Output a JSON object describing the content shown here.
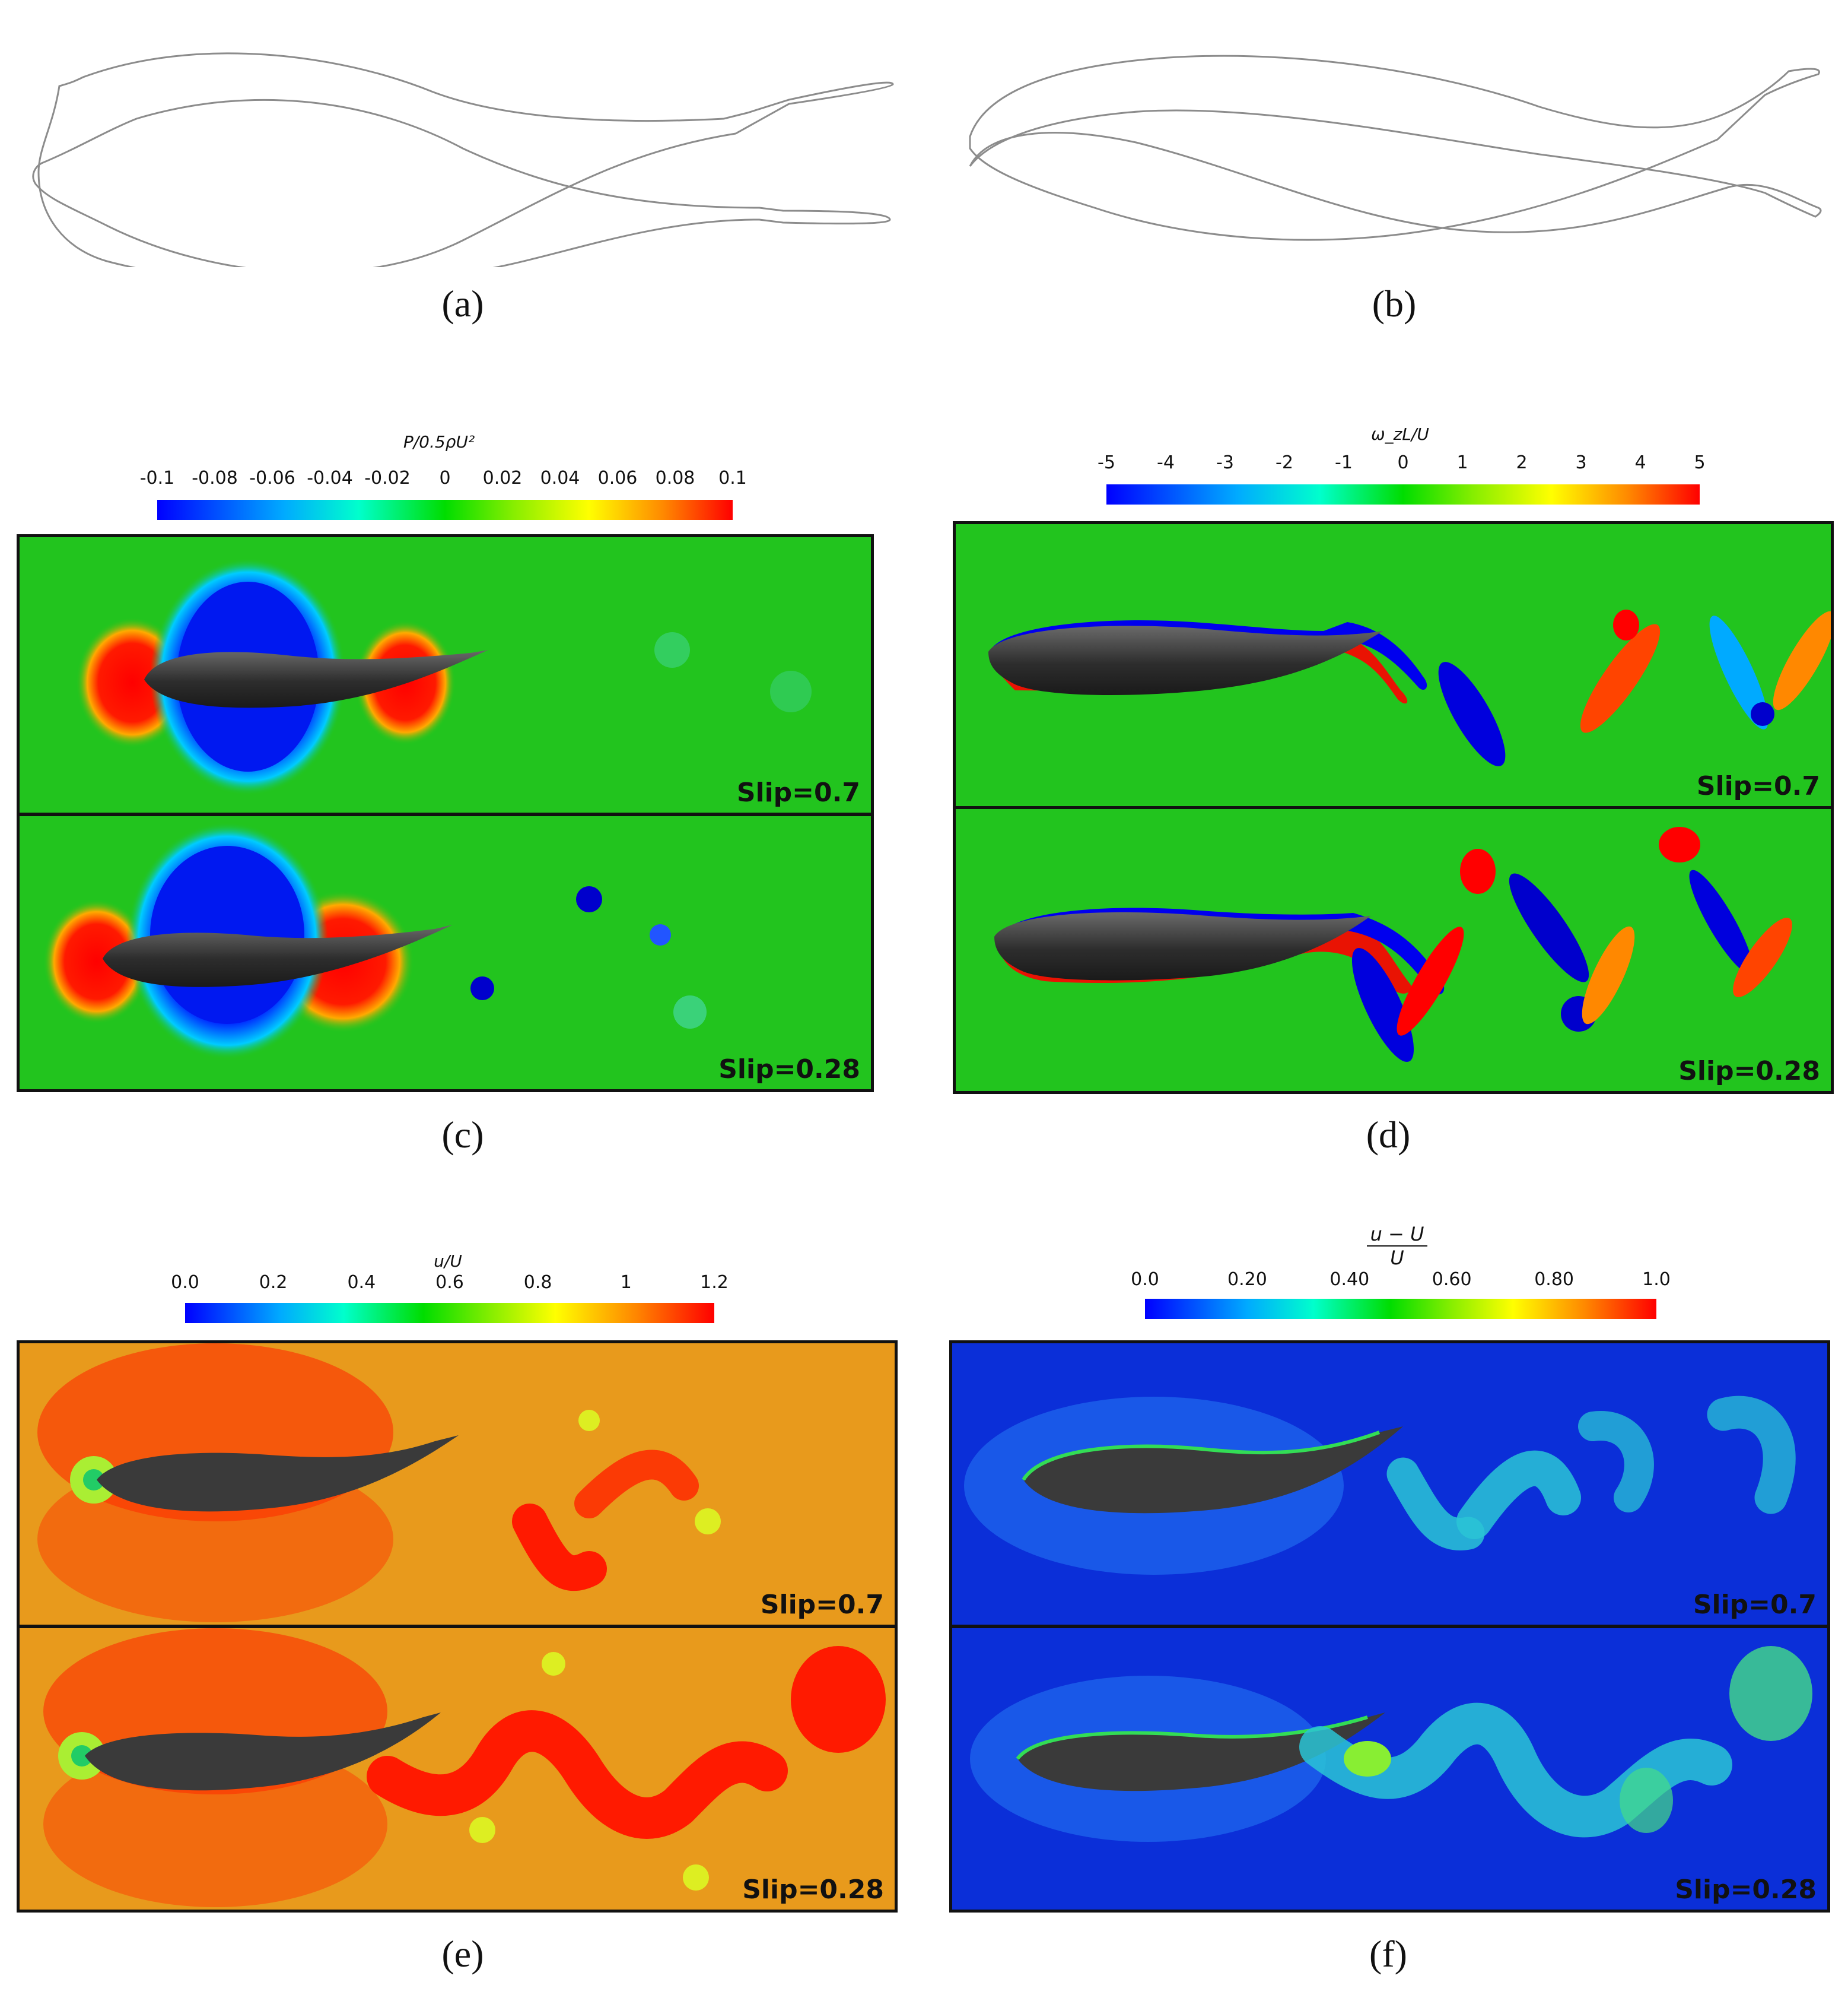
{
  "captions": {
    "a": "(a)",
    "b": "(b)",
    "c": "(c)",
    "d": "(d)",
    "e": "(e)",
    "f": "(f)"
  },
  "pressure": {
    "title": "P/0.5ρU²",
    "ticks": [
      "-0.1",
      "-0.08",
      "-0.06",
      "-0.04",
      "-0.02",
      "0",
      "0.02",
      "0.04",
      "0.06",
      "0.08",
      "0.1"
    ],
    "slip_top": "Slip=0.7",
    "slip_bottom": "Slip=0.28"
  },
  "vorticity": {
    "title": "ω_zL/U",
    "ticks": [
      "-5",
      "-4",
      "-3",
      "-2",
      "-1",
      "0",
      "1",
      "2",
      "3",
      "4",
      "5"
    ],
    "slip_top": "Slip=0.7",
    "slip_bottom": "Slip=0.28"
  },
  "velocity": {
    "title": "u/U",
    "ticks": [
      "0.0",
      "0.2",
      "0.4",
      "0.6",
      "0.8",
      "1",
      "1.2"
    ],
    "slip_top": "Slip=0.7",
    "slip_bottom": "Slip=0.28"
  },
  "deficit": {
    "title_num": "u − U",
    "title_den": "U",
    "ticks": [
      "0.0",
      "0.20",
      "0.40",
      "0.60",
      "0.80",
      "1.0"
    ],
    "slip_top": "Slip=0.7",
    "slip_bottom": "Slip=0.28"
  },
  "colors": {
    "jet": [
      "#0000ff",
      "#00ffff",
      "#00dd00",
      "#ffff00",
      "#ff0000"
    ],
    "green_bg": "#22c41e",
    "orange_bg": "#e89a1c",
    "blue_bg": "#0b2fd8"
  }
}
